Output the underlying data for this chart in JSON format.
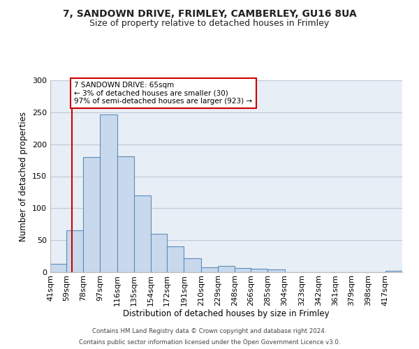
{
  "title_line1": "7, SANDOWN DRIVE, FRIMLEY, CAMBERLEY, GU16 8UA",
  "title_line2": "Size of property relative to detached houses in Frimley",
  "xlabel": "Distribution of detached houses by size in Frimley",
  "ylabel": "Number of detached properties",
  "bin_labels": [
    "41sqm",
    "59sqm",
    "78sqm",
    "97sqm",
    "116sqm",
    "135sqm",
    "154sqm",
    "172sqm",
    "191sqm",
    "210sqm",
    "229sqm",
    "248sqm",
    "266sqm",
    "285sqm",
    "304sqm",
    "323sqm",
    "342sqm",
    "361sqm",
    "379sqm",
    "398sqm",
    "417sqm"
  ],
  "bin_edges": [
    41,
    59,
    78,
    97,
    116,
    135,
    154,
    172,
    191,
    210,
    229,
    248,
    266,
    285,
    304,
    323,
    342,
    361,
    379,
    398,
    417
  ],
  "bar_heights": [
    13,
    65,
    180,
    246,
    181,
    120,
    60,
    40,
    22,
    8,
    10,
    7,
    6,
    4,
    0,
    0,
    0,
    0,
    0,
    0,
    2
  ],
  "bar_facecolor": "#c9d9ed",
  "bar_edgecolor": "#5b8db8",
  "grid_color": "#c0c8d8",
  "background_color": "#e8eef5",
  "vline_x": 65,
  "vline_color": "#cc0000",
  "annotation_title": "7 SANDOWN DRIVE: 65sqm",
  "annotation_line2": "← 3% of detached houses are smaller (30)",
  "annotation_line3": "97% of semi-detached houses are larger (923) →",
  "annotation_box_edgecolor": "#cc0000",
  "annotation_box_facecolor": "#ffffff",
  "ylim": [
    0,
    300
  ],
  "yticks": [
    0,
    50,
    100,
    150,
    200,
    250,
    300
  ],
  "footer_line1": "Contains HM Land Registry data © Crown copyright and database right 2024.",
  "footer_line2": "Contains public sector information licensed under the Open Government Licence v3.0."
}
